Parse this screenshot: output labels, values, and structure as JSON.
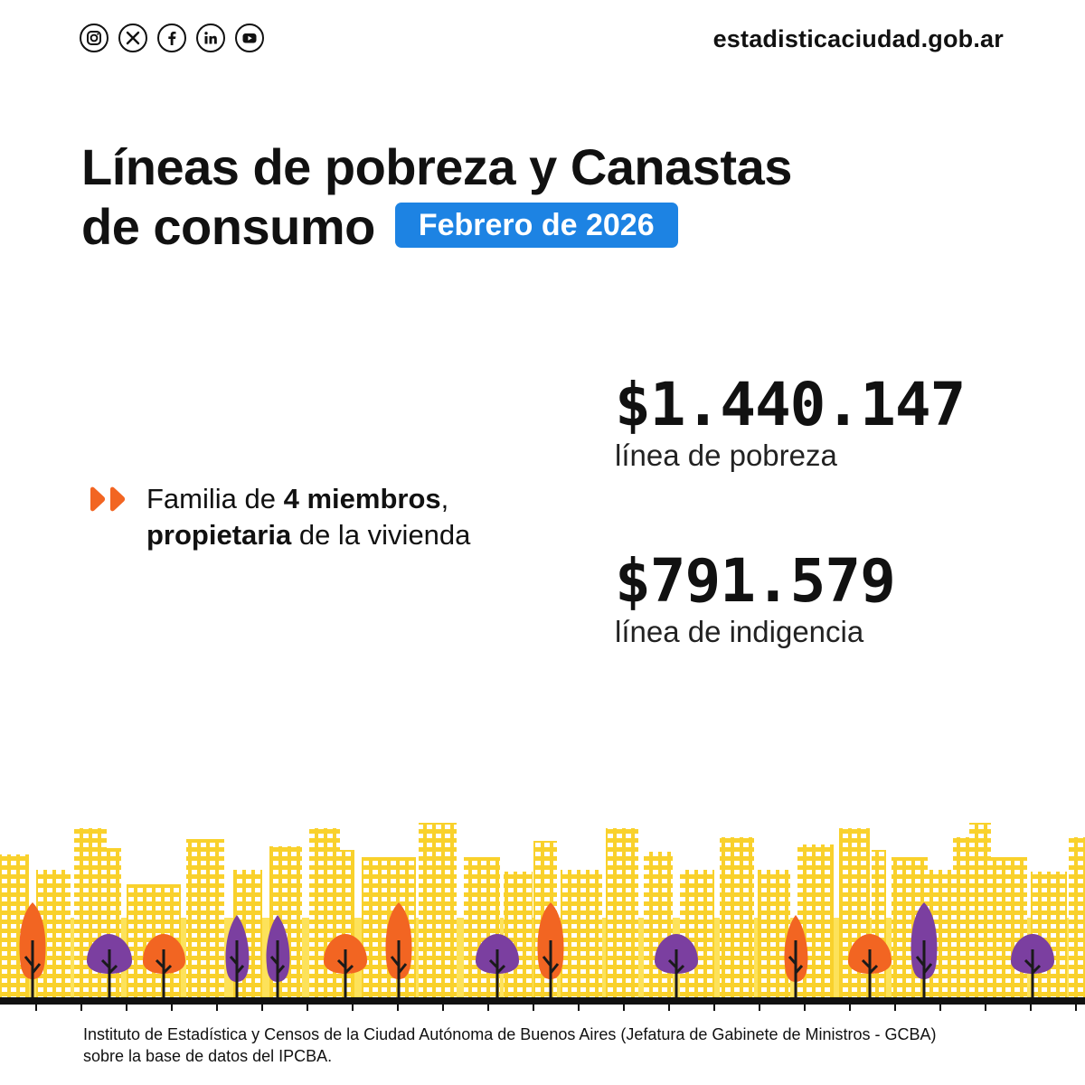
{
  "header": {
    "social_icons": [
      "instagram-icon",
      "x-icon",
      "facebook-icon",
      "linkedin-icon",
      "youtube-icon"
    ],
    "site_url": "estadisticaciudad.gob.ar"
  },
  "title": {
    "line1": "Líneas de pobreza y Canastas",
    "line2": "de consumo",
    "badge": "Febrero de 2026"
  },
  "family": {
    "t1": "Familia de ",
    "t2": "4 miembros",
    "t3": ",",
    "t4": "propietaria",
    "t5": " de la vivienda"
  },
  "stats": {
    "poverty_value": "$1.440.147",
    "poverty_label": "línea de pobreza",
    "indigence_value": "$791.579",
    "indigence_label": "línea de indigencia"
  },
  "footer": {
    "line1": "Instituto de Estadística y Censos de la Ciudad Autónoma de Buenos Aires (Jefatura de Gabinete de Ministros - GCBA)",
    "line2": "sobre la base de datos del IPCBA."
  },
  "colors": {
    "badge_blue": "#1d83e3",
    "accent_orange": "#f26522",
    "tree_purple": "#7b3fa0",
    "building_yellow": "#f9d12c",
    "background_yellow": "#fde25a"
  }
}
